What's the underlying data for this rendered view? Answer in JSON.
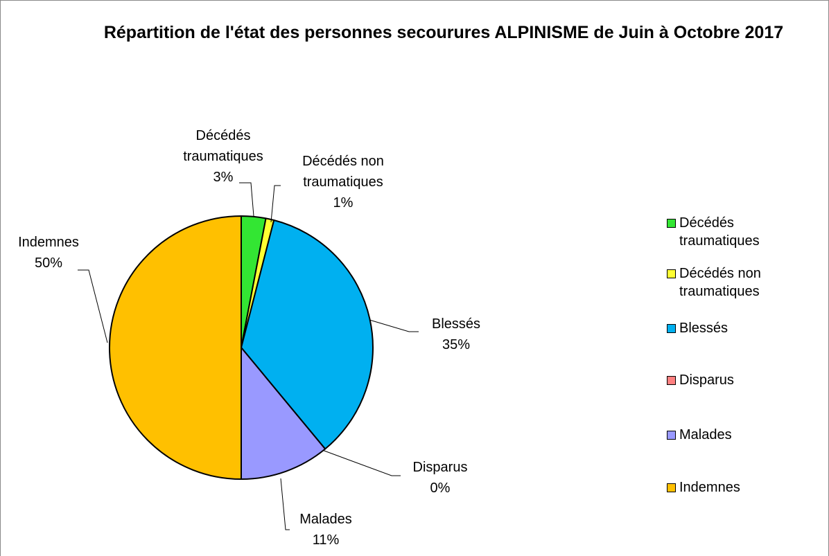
{
  "chart_data": {
    "type": "pie",
    "title": "Répartition de l'état des personnes secourures ALPINISME de Juin à Octobre 2017",
    "categories": [
      "Décédés traumatiques",
      "Décédés non traumatiques",
      "Blessés",
      "Disparus",
      "Malades",
      "Indemnes"
    ],
    "values": [
      3,
      1,
      35,
      0,
      11,
      50
    ],
    "value_labels": [
      "3%",
      "1%",
      "35%",
      "0%",
      "11%",
      "50%"
    ],
    "colors": [
      "#33e633",
      "#ffff33",
      "#00b0f0",
      "#ff8080",
      "#9999ff",
      "#ffc000"
    ],
    "legend": "right"
  }
}
